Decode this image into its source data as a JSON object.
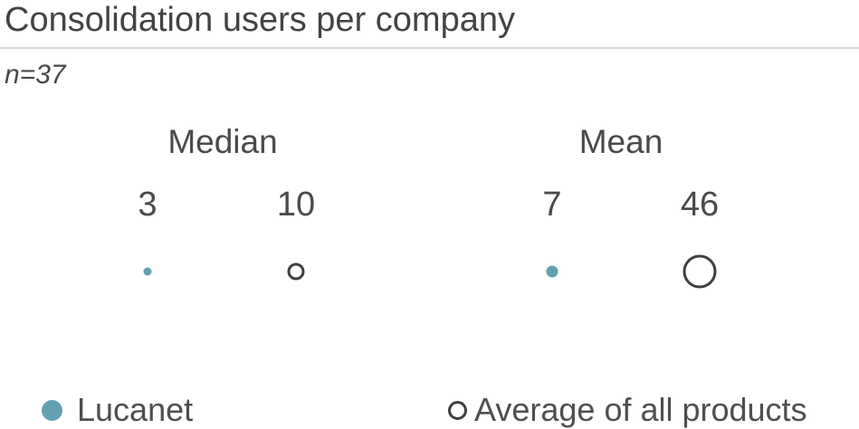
{
  "chart_data": {
    "type": "scatter",
    "title": "Consolidation users per company",
    "subtitle": "n=37",
    "layout_hint": "two labeled groups, bubble size proportional to sqrt(value), value labels above markers, legend bottom",
    "groups": [
      {
        "label": "Median",
        "points": [
          {
            "series": "Lucanet",
            "value": 3,
            "value_label": "3",
            "marker": "filled-circle"
          },
          {
            "series": "Average of all products",
            "value": 10,
            "value_label": "10",
            "marker": "open-circle"
          }
        ]
      },
      {
        "label": "Mean",
        "points": [
          {
            "series": "Lucanet",
            "value": 7,
            "value_label": "7",
            "marker": "filled-circle"
          },
          {
            "series": "Average of all products",
            "value": 46,
            "value_label": "46",
            "marker": "open-circle"
          }
        ]
      }
    ],
    "legend": [
      {
        "label": "Lucanet",
        "marker": "filled-circle",
        "color": "#64a0b1"
      },
      {
        "label": "Average of all products",
        "marker": "open-circle",
        "color": "#3f3f3f"
      }
    ],
    "colors": {
      "text": "#4a4a4a",
      "divider": "#dadada",
      "lucanet_fill": "#64a0b1",
      "average_stroke": "#3f3f3f"
    }
  }
}
